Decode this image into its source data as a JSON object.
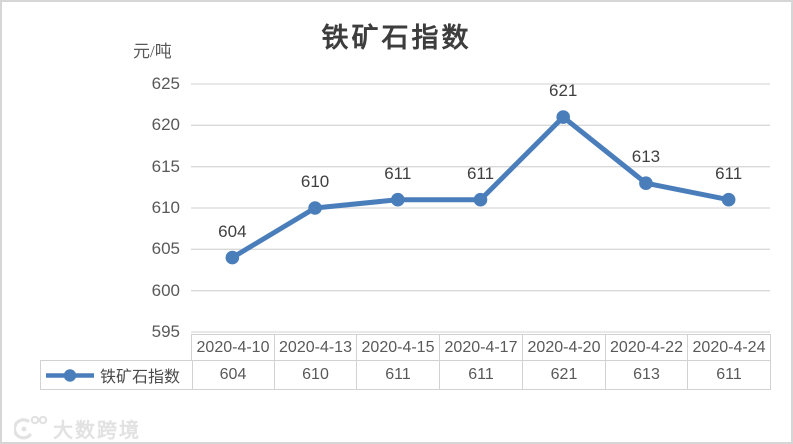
{
  "title": "铁矿石指数",
  "y_axis_unit": "元/吨",
  "watermark": {
    "brand": "大数跨境"
  },
  "chart_data": {
    "type": "line",
    "title": "铁矿石指数",
    "ylabel": "元/吨",
    "categories": [
      "2020-4-10",
      "2020-4-13",
      "2020-4-15",
      "2020-4-17",
      "2020-4-20",
      "2020-4-22",
      "2020-4-24"
    ],
    "series": [
      {
        "name": "铁矿石指数",
        "values": [
          604,
          610,
          611,
          611,
          621,
          613,
          611
        ]
      }
    ],
    "ylim": [
      595,
      625
    ],
    "yticks": [
      625,
      620,
      615,
      610,
      605,
      600,
      595
    ],
    "grid": true,
    "data_labels": true,
    "legend_position": "table-left",
    "colors": {
      "line": "#4a7ebb",
      "grid": "#d9d9d9",
      "axis_text": "#595959",
      "label_text": "#404040",
      "table_border": "#d2d2d2"
    }
  }
}
